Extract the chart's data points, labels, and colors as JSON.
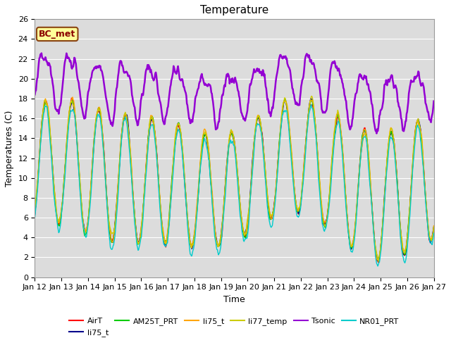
{
  "title": "Temperature",
  "xlabel": "Time",
  "ylabel": "Temperatures (C)",
  "ylim": [
    0,
    26
  ],
  "x_tick_labels": [
    "Jan 12",
    "Jan 13",
    "Jan 14",
    "Jan 15",
    "Jan 16",
    "Jan 17",
    "Jan 18",
    "Jan 19",
    "Jan 20",
    "Jan 21",
    "Jan 22",
    "Jan 23",
    "Jan 24",
    "Jan 25",
    "Jan 26",
    "Jan 27"
  ],
  "annotation_text": "BC_met",
  "annotation_bg": "#FFFF99",
  "annotation_border": "#8B4513",
  "background_color": "#DCDCDC",
  "series": [
    {
      "name": "AirT",
      "color": "#FF0000",
      "lw": 1.0
    },
    {
      "name": "li75_t",
      "color": "#00008B",
      "lw": 1.0
    },
    {
      "name": "AM25T_PRT",
      "color": "#00CC00",
      "lw": 1.0
    },
    {
      "name": "li75_t",
      "color": "#FFA500",
      "lw": 1.0
    },
    {
      "name": "li77_temp",
      "color": "#CCCC00",
      "lw": 1.0
    },
    {
      "name": "Tsonic",
      "color": "#9400D3",
      "lw": 1.8
    },
    {
      "name": "NR01_PRT",
      "color": "#00CCCC",
      "lw": 1.0
    }
  ],
  "title_fontsize": 11,
  "axis_fontsize": 9,
  "tick_fontsize": 8,
  "legend_fontsize": 8
}
